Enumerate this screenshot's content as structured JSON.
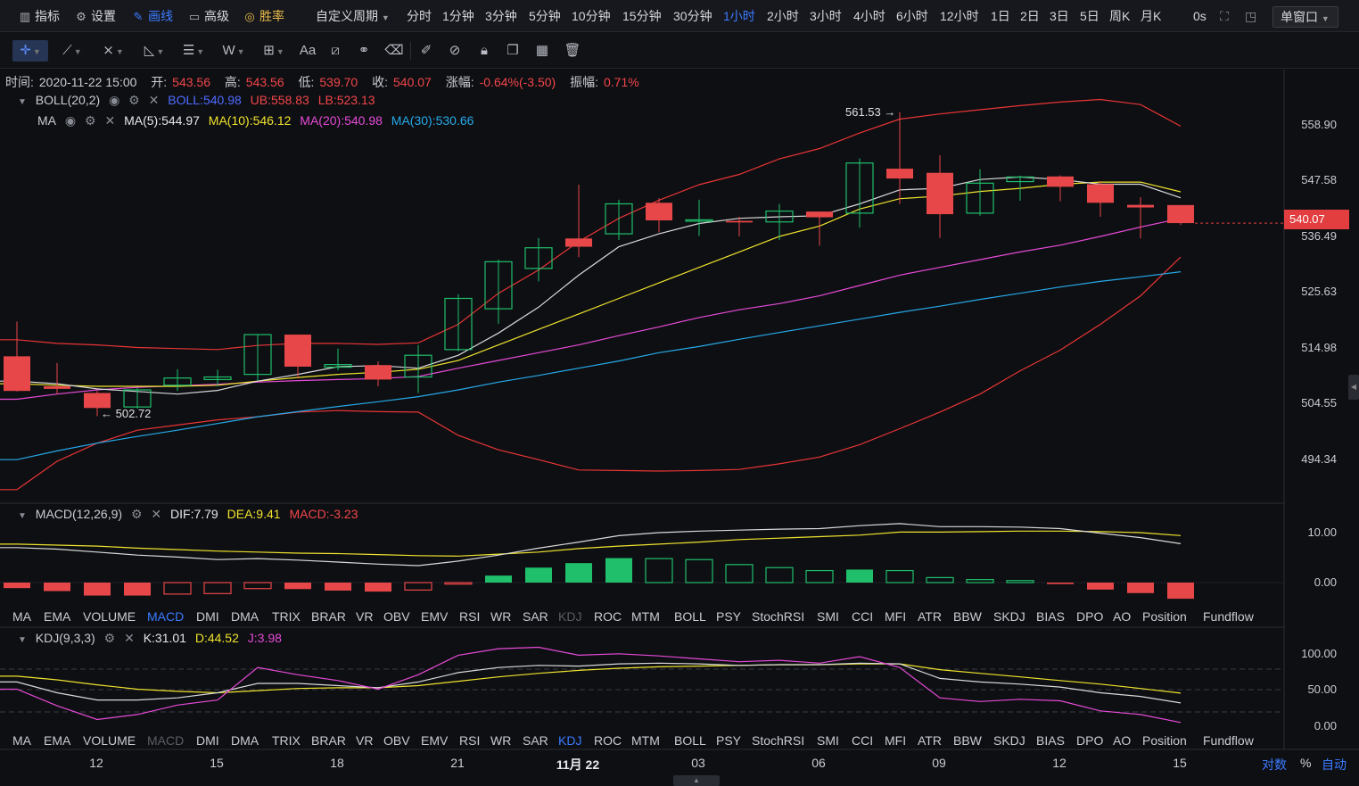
{
  "topbar": {
    "items": [
      {
        "icon": "indicator-icon",
        "label": "指标"
      },
      {
        "icon": "settings-icon",
        "label": "设置"
      },
      {
        "icon": "draw-icon",
        "label": "画线"
      },
      {
        "icon": "advanced-icon",
        "label": "高级"
      },
      {
        "icon": "win-rate-icon",
        "label": "胜率"
      }
    ],
    "custom_period": "自定义周期",
    "intervals": [
      "分时",
      "1分钟",
      "3分钟",
      "5分钟",
      "10分钟",
      "15分钟",
      "30分钟",
      "1小时",
      "2小时",
      "3小时",
      "4小时",
      "6小时",
      "12小时",
      "1日",
      "2日",
      "3日",
      "5日",
      "周K",
      "月K"
    ],
    "active_interval": "1小时",
    "countdown": "0s",
    "window_mode": "单窗口"
  },
  "ohlc": {
    "time_label": "时间:",
    "time": "2020-11-22 15:00",
    "open_label": "开:",
    "open": "543.56",
    "high_label": "高:",
    "high": "543.56",
    "low_label": "低:",
    "low": "539.70",
    "close_label": "收:",
    "close": "540.07",
    "change_label": "涨幅:",
    "change": "-0.64%(-3.50)",
    "amplitude_label": "振幅:",
    "amplitude": "0.71%"
  },
  "boll": {
    "name": "BOLL(20,2)",
    "boll": "BOLL:540.98",
    "ub": "UB:558.83",
    "lb": "LB:523.13"
  },
  "ma": {
    "name": "MA",
    "ma5": "MA(5):544.97",
    "ma10": "MA(10):546.12",
    "ma20": "MA(20):540.98",
    "ma30": "MA(30):530.66"
  },
  "macd": {
    "name": "MACD(12,26,9)",
    "dif": "DIF:7.79",
    "dea": "DEA:9.41",
    "macd": "MACD:-3.23"
  },
  "kdj": {
    "name": "KDJ(9,3,3)",
    "k": "K:31.01",
    "d": "D:44.52",
    "j": "J:3.98"
  },
  "indicator_tabs": [
    "MA",
    "EMA",
    "VOLUME",
    "MACD",
    "DMI",
    "DMA",
    "TRIX",
    "BRAR",
    "VR",
    "OBV",
    "EMV",
    "RSI",
    "WR",
    "SAR",
    "KDJ",
    "ROC",
    "MTM",
    "BOLL",
    "PSY",
    "StochRSI",
    "SMI",
    "CCI",
    "MFI",
    "ATR",
    "BBW",
    "SKDJ",
    "BIAS",
    "DPO",
    "AO",
    "Position",
    "Fundflow"
  ],
  "price_axis": [
    "558.90",
    "547.58",
    "536.49",
    "525.63",
    "514.98",
    "504.55",
    "494.34"
  ],
  "macd_axis": [
    "10.00",
    "0.00"
  ],
  "kdj_axis": [
    "100.00",
    "50.00",
    "0.00"
  ],
  "current_price": "540.07",
  "high_marker": "561.53 →",
  "low_marker": "← 502.72",
  "dates": [
    "12",
    "15",
    "18",
    "21",
    "11月 22",
    "03",
    "06",
    "09",
    "12",
    "15"
  ],
  "bottom_right": {
    "log": "对数",
    "percent": "%",
    "auto": "自动"
  },
  "colors": {
    "up": "#1fbf6b",
    "down": "#e84749",
    "accent": "#3a7bff",
    "ub": "#e83535",
    "ma5": "#d9d9d9",
    "ma10": "#f0e32d",
    "ma20": "#e64ad7",
    "ma30": "#26a9e8"
  },
  "chart_data": {
    "type": "candlestick",
    "candles": [
      {
        "o": 514.3,
        "h": 521,
        "l": 507.5,
        "c": 507.6
      },
      {
        "o": 508.5,
        "h": 513,
        "l": 507,
        "c": 508
      },
      {
        "o": 507.2,
        "h": 507.6,
        "l": 502.72,
        "c": 504.3
      },
      {
        "o": 504.5,
        "h": 508.2,
        "l": 504.2,
        "c": 507.8
      },
      {
        "o": 508.7,
        "h": 511.8,
        "l": 507.6,
        "c": 510.1
      },
      {
        "o": 509.8,
        "h": 511.7,
        "l": 508.5,
        "c": 510.3
      },
      {
        "o": 510.8,
        "h": 518.6,
        "l": 509.6,
        "c": 518.5
      },
      {
        "o": 518.5,
        "h": 518.5,
        "l": 510,
        "c": 512.3
      },
      {
        "o": 512.2,
        "h": 515.8,
        "l": 511.6,
        "c": 512.7
      },
      {
        "o": 512.6,
        "h": 513.3,
        "l": 508.5,
        "c": 509.8
      },
      {
        "o": 510.3,
        "h": 516.5,
        "l": 507.2,
        "c": 514.5
      },
      {
        "o": 515.6,
        "h": 526.3,
        "l": 515.3,
        "c": 525.5
      },
      {
        "o": 523.5,
        "h": 533,
        "l": 520.6,
        "c": 532.6
      },
      {
        "o": 531.3,
        "h": 537.2,
        "l": 528.8,
        "c": 535.3
      },
      {
        "o": 537.1,
        "h": 547.5,
        "l": 533.5,
        "c": 535.5
      },
      {
        "o": 538,
        "h": 544.6,
        "l": 536.8,
        "c": 543.8
      },
      {
        "o": 544,
        "h": 544.9,
        "l": 538.3,
        "c": 540.6
      },
      {
        "o": 540.7,
        "h": 544.6,
        "l": 537.6,
        "c": 540.7
      },
      {
        "o": 540.5,
        "h": 541.3,
        "l": 537.5,
        "c": 540.2
      },
      {
        "o": 540.3,
        "h": 543.8,
        "l": 536.8,
        "c": 542.4
      },
      {
        "o": 542.3,
        "h": 542.3,
        "l": 535.7,
        "c": 541.2
      },
      {
        "o": 542,
        "h": 552.6,
        "l": 539.2,
        "c": 551.7
      },
      {
        "o": 550.6,
        "h": 561.53,
        "l": 543.8,
        "c": 548.7
      },
      {
        "o": 549.8,
        "h": 553.2,
        "l": 537.2,
        "c": 541.8
      },
      {
        "o": 542,
        "h": 550.5,
        "l": 541.5,
        "c": 547.8
      },
      {
        "o": 548.1,
        "h": 549.2,
        "l": 544.4,
        "c": 549
      },
      {
        "o": 549.1,
        "h": 549.3,
        "l": 544.3,
        "c": 547.1
      },
      {
        "o": 547.6,
        "h": 548.2,
        "l": 541.3,
        "c": 544
      },
      {
        "o": 543.6,
        "h": 545.1,
        "l": 537.1,
        "c": 543.1
      },
      {
        "o": 543.56,
        "h": 543.56,
        "l": 539.7,
        "c": 540.07
      }
    ],
    "ub": [
      517.5,
      516.8,
      516.5,
      516,
      515.8,
      515.6,
      516.4,
      516.8,
      516.8,
      516.6,
      516.9,
      520.5,
      526.5,
      531,
      536.5,
      541,
      544.5,
      547.5,
      549.5,
      552.5,
      554.5,
      557.5,
      560.2,
      561.2,
      562,
      562.8,
      563.5,
      564,
      563,
      558.83
    ],
    "lb": [
      488.5,
      494,
      497.5,
      500,
      501,
      502,
      502.6,
      503.5,
      503.8,
      503.6,
      503.5,
      499,
      496.2,
      494.3,
      492.3,
      492.2,
      492.1,
      492.2,
      492.4,
      493.5,
      494.8,
      497.2,
      500.3,
      503.5,
      507,
      511.5,
      515.5,
      520.5,
      526,
      533.5
    ],
    "ma5": [
      509.5,
      509,
      508,
      507.5,
      507,
      507.7,
      509.5,
      510.8,
      512.3,
      512.5,
      512,
      514.5,
      518.8,
      523.8,
      530,
      535.5,
      538,
      540,
      541,
      541.3,
      541.5,
      543.8,
      546.5,
      546.8,
      548.5,
      549,
      548.5,
      547.6,
      547.6,
      544.97
    ],
    "ma10": [
      509,
      508.7,
      508.5,
      508.5,
      508.5,
      508.7,
      509.5,
      510.2,
      510.8,
      511.2,
      511.8,
      513.5,
      516.5,
      519.5,
      522.5,
      525.5,
      528.5,
      531.5,
      534.5,
      537.5,
      539.5,
      542.8,
      544.8,
      545.3,
      546.2,
      546.8,
      547.6,
      548,
      548,
      546.12
    ],
    "ma20": [
      506,
      507,
      507.8,
      508.3,
      508.6,
      508.9,
      509.3,
      509.6,
      509.8,
      510,
      510.4,
      512,
      513.5,
      515,
      516.5,
      518.3,
      520,
      521.8,
      523.3,
      524.5,
      526,
      528,
      530,
      531.5,
      533,
      534.5,
      535.8,
      537.5,
      539.3,
      540.98
    ],
    "ma30": [
      494.3,
      496,
      497.5,
      498.8,
      500,
      501.3,
      502.6,
      503.6,
      504.6,
      505.5,
      506.5,
      507.8,
      509.3,
      510.6,
      512,
      513.4,
      515,
      516.2,
      517.6,
      518.9,
      520.2,
      521.5,
      522.8,
      524,
      525.3,
      526.5,
      527.7,
      528.8,
      529.7,
      530.66
    ],
    "macd_hist": [
      -1.1,
      -1.7,
      -2.6,
      -2.6,
      -2.3,
      -2.2,
      -1.2,
      -1.3,
      -1.6,
      -1.8,
      -1.5,
      -0.3,
      1.4,
      3,
      3.9,
      4.9,
      4.8,
      4.6,
      3.6,
      3,
      2.4,
      2.6,
      2.4,
      1,
      0.6,
      0.4,
      -0.3,
      -1.4,
      -2.1,
      -3.23
    ],
    "dif": [
      7,
      6.7,
      6.1,
      5.5,
      5.1,
      4.6,
      4.8,
      4.5,
      4.1,
      3.7,
      3.4,
      4.3,
      5.5,
      6.9,
      8.1,
      9.4,
      10,
      10.3,
      10.5,
      10.7,
      10.8,
      11.4,
      11.8,
      11.2,
      11.2,
      11.1,
      10.8,
      9.9,
      9,
      7.79
    ],
    "dea": [
      7.7,
      7.5,
      7.3,
      6.9,
      6.6,
      6.3,
      6.1,
      5.9,
      5.8,
      5.6,
      5.4,
      5.3,
      5.7,
      6.1,
      6.8,
      7.3,
      7.7,
      8.1,
      8.6,
      8.9,
      9.2,
      9.5,
      10.1,
      10.1,
      10.2,
      10.3,
      10.3,
      10.2,
      10,
      9.41
    ],
    "k": [
      60,
      45,
      35,
      35,
      38,
      45,
      58,
      58,
      55,
      52,
      60,
      73,
      80,
      83,
      82,
      85,
      86,
      85,
      83,
      84,
      84,
      86,
      85,
      65,
      60,
      57,
      53,
      45,
      40,
      31.01
    ],
    "d": [
      68,
      63,
      56,
      50,
      47,
      45,
      48,
      51,
      52,
      52,
      55,
      61,
      67,
      72,
      76,
      79,
      81,
      82,
      83,
      84,
      84,
      85,
      85,
      77,
      72,
      67,
      62,
      57,
      51,
      44.52
    ],
    "j": [
      50,
      27,
      8,
      15,
      28,
      35,
      80,
      70,
      62,
      50,
      70,
      97,
      106,
      108,
      97,
      99,
      96,
      92,
      88,
      90,
      86,
      95,
      80,
      38,
      33,
      36,
      34,
      20,
      15,
      3.98
    ]
  }
}
